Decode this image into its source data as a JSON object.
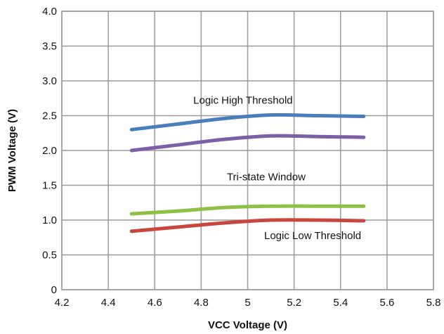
{
  "chart_data": {
    "type": "line",
    "xlabel": "VCC Voltage (V)",
    "ylabel": "PWM Voltage (V)",
    "xlim": [
      4.2,
      5.8
    ],
    "ylim": [
      0,
      4.0
    ],
    "grid": true,
    "x_ticks": [
      4.2,
      4.4,
      4.6,
      4.8,
      5.0,
      5.2,
      5.4,
      5.6,
      5.8
    ],
    "x_tick_labels": [
      "4.2",
      "4.4",
      "4.6",
      "4.8",
      "5",
      "5.2",
      "5.4",
      "5.6",
      "5.8"
    ],
    "y_ticks": [
      0,
      0.5,
      1.0,
      1.5,
      2.0,
      2.5,
      3.0,
      3.5,
      4.0
    ],
    "y_tick_labels": [
      "0",
      "0.5",
      "1.0",
      "1.5",
      "2.0",
      "2.5",
      "3.0",
      "3.5",
      "4.0"
    ],
    "series": [
      {
        "color": "#4a7ebb",
        "x": [
          4.5,
          4.7,
          4.9,
          5.1,
          5.3,
          5.5
        ],
        "values": [
          2.3,
          2.38,
          2.46,
          2.51,
          2.5,
          2.49
        ]
      },
      {
        "color": "#7d5fa6",
        "x": [
          4.5,
          4.7,
          4.9,
          5.1,
          5.3,
          5.5
        ],
        "values": [
          2.0,
          2.08,
          2.16,
          2.21,
          2.2,
          2.19
        ]
      },
      {
        "color": "#8dc045",
        "x": [
          4.5,
          4.7,
          4.9,
          5.1,
          5.3,
          5.5
        ],
        "values": [
          1.09,
          1.13,
          1.18,
          1.2,
          1.2,
          1.2
        ]
      },
      {
        "color": "#c8463e",
        "x": [
          4.5,
          4.7,
          4.9,
          5.1,
          5.3,
          5.5
        ],
        "values": [
          0.84,
          0.9,
          0.96,
          1.0,
          1.0,
          0.99
        ]
      }
    ],
    "annotations": [
      {
        "text": "Logic High Threshold",
        "x": 4.98,
        "y": 2.72
      },
      {
        "text": "Tri-state Window",
        "x": 5.08,
        "y": 1.62
      },
      {
        "text": "Logic Low Threshold",
        "x": 5.28,
        "y": 0.78
      }
    ]
  }
}
